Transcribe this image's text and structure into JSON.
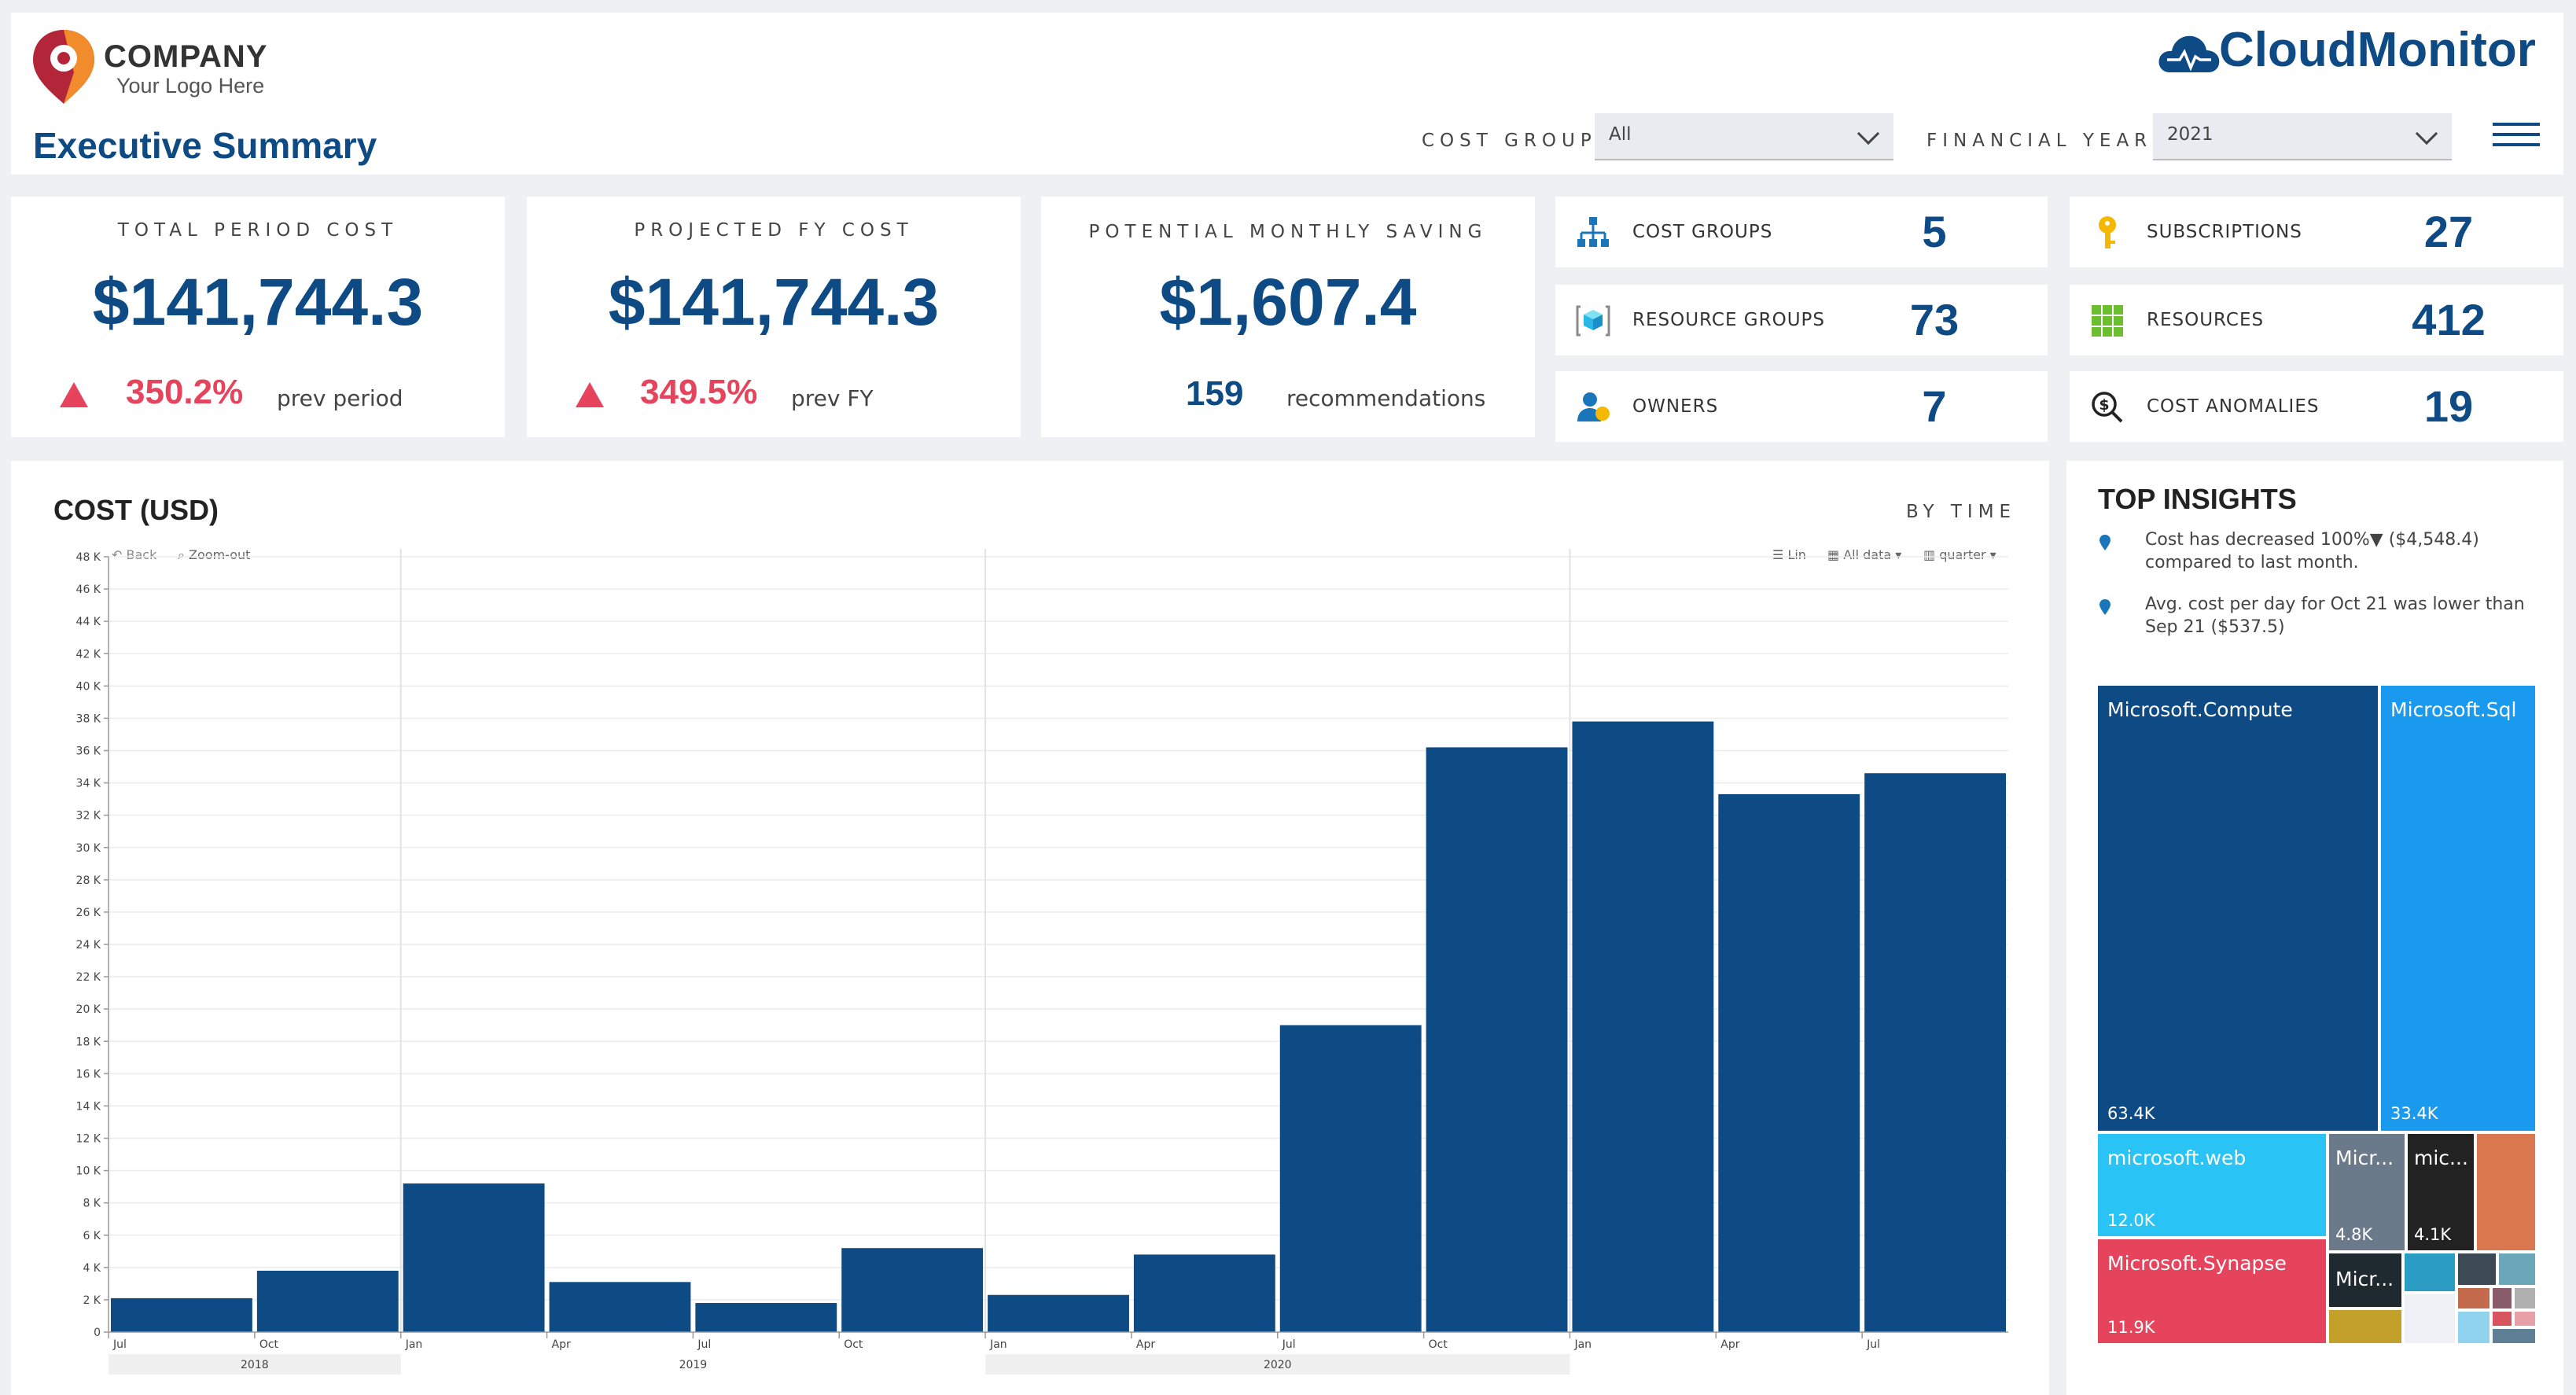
{
  "header": {
    "company": "COMPANY",
    "logo_sub": "Your Logo Here",
    "page_title": "Executive Summary",
    "brand": "CloudMonitor",
    "cost_group_label": "COST GROUP",
    "cost_group_value": "All",
    "fy_label": "FINANCIAL YEAR",
    "fy_value": "2021"
  },
  "kpis": {
    "total": {
      "label": "TOTAL PERIOD COST",
      "value": "$141,744.3",
      "pct": "350.2%",
      "sub": "prev period"
    },
    "projected": {
      "label": "PROJECTED FY COST",
      "value": "$141,744.3",
      "pct": "349.5%",
      "sub": "prev FY"
    },
    "saving": {
      "label": "POTENTIAL MONTHLY SAVING",
      "value": "$1,607.4",
      "count": "159",
      "sub": "recommendations"
    }
  },
  "stats": [
    {
      "label": "COST GROUPS",
      "value": "5",
      "icon": "org-chart-icon"
    },
    {
      "label": "SUBSCRIPTIONS",
      "value": "27",
      "icon": "key-icon"
    },
    {
      "label": "RESOURCE GROUPS",
      "value": "73",
      "icon": "cube-icon"
    },
    {
      "label": "RESOURCES",
      "value": "412",
      "icon": "grid-icon"
    },
    {
      "label": "OWNERS",
      "value": "7",
      "icon": "users-icon"
    },
    {
      "label": "COST ANOMALIES",
      "value": "19",
      "icon": "dollar-search-icon"
    }
  ],
  "chart": {
    "title": "COST (USD)",
    "mode": "BY TIME",
    "toolbar": {
      "back": "Back",
      "zoom": "Zoom-out",
      "lin": "Lin",
      "all": "All data",
      "quarter": "quarter"
    }
  },
  "chart_data": {
    "type": "bar",
    "categories": [
      "Jul 2018",
      "Oct 2018",
      "Jan 2019",
      "Apr 2019",
      "Jul 2019",
      "Oct 2019",
      "Jan 2020",
      "Apr 2020",
      "Jul 2020",
      "Oct 2020",
      "Jan 2021",
      "Apr 2021",
      "Jul 2021"
    ],
    "tick_labels": [
      "Jul",
      "Oct",
      "Jan",
      "Apr",
      "Jul",
      "Oct",
      "Jan",
      "Apr",
      "Jul",
      "Oct",
      "Jan",
      "Apr",
      "Jul"
    ],
    "years": [
      "2018",
      "2019",
      "2020"
    ],
    "values": [
      2100,
      3800,
      9200,
      3100,
      1800,
      5200,
      2300,
      4800,
      19000,
      36200,
      37800,
      33300,
      34600
    ],
    "ylim": [
      0,
      48000
    ],
    "yticks": [
      "0",
      "2 K",
      "4 K",
      "6 K",
      "8 K",
      "10 K",
      "12 K",
      "14 K",
      "16 K",
      "18 K",
      "20 K",
      "22 K",
      "24 K",
      "26 K",
      "28 K",
      "30 K",
      "32 K",
      "34 K",
      "36 K",
      "38 K",
      "40 K",
      "42 K",
      "44 K",
      "46 K",
      "48 K"
    ],
    "color": "#0e4a84",
    "grid": true
  },
  "insights": {
    "title": "TOP INSIGHTS",
    "items": [
      {
        "text": "Cost has decreased 100%▼ ($4,548.4) compared to last month."
      },
      {
        "text": "Avg. cost per day for Oct 21 was lower than Sep 21 ($537.5)"
      }
    ]
  },
  "treemap": [
    {
      "label": "Microsoft.Compute",
      "value": "63.4K",
      "color": "#0e4a84"
    },
    {
      "label": "Microsoft.Sql",
      "value": "33.4K",
      "color": "#1a9aef"
    },
    {
      "label": "microsoft.web",
      "value": "12.0K",
      "color": "#29c4f5"
    },
    {
      "label": "Micr...",
      "value": "4.8K",
      "color": "#6b7a8a"
    },
    {
      "label": "mic...",
      "value": "4.1K",
      "color": "#222222"
    },
    {
      "label": "Microsoft.Synapse",
      "value": "11.9K",
      "color": "#e6435c"
    },
    {
      "label": "Micr...",
      "value": "",
      "color": "#1e2a30"
    }
  ]
}
